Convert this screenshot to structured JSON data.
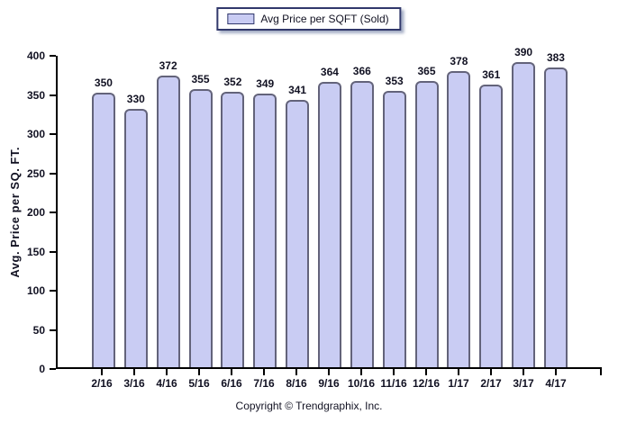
{
  "legend": {
    "label": "Avg Price per SQFT (Sold)"
  },
  "footer": {
    "copyright": "Copyright © Trendgraphix, Inc."
  },
  "chart_data": {
    "type": "bar",
    "title": "Avg Price per SQFT (Sold)",
    "xlabel": "",
    "ylabel": "Avg. Price per SQ. FT.",
    "ylim": [
      0,
      400
    ],
    "yticks": [
      0,
      50,
      100,
      150,
      200,
      250,
      300,
      350,
      400
    ],
    "grid": false,
    "legend_position": "top-center",
    "categories": [
      "2/16",
      "3/16",
      "4/16",
      "5/16",
      "6/16",
      "7/16",
      "8/16",
      "9/16",
      "10/16",
      "11/16",
      "12/16",
      "1/17",
      "2/17",
      "3/17",
      "4/17"
    ],
    "values": [
      350,
      330,
      372,
      355,
      352,
      349,
      341,
      364,
      366,
      353,
      365,
      378,
      361,
      390,
      383
    ],
    "colors": {
      "bar_fill": "#c9ccf3",
      "bar_border": "#63637a",
      "axis": "#000000",
      "text": "#111122",
      "legend_border": "#31386b"
    }
  }
}
